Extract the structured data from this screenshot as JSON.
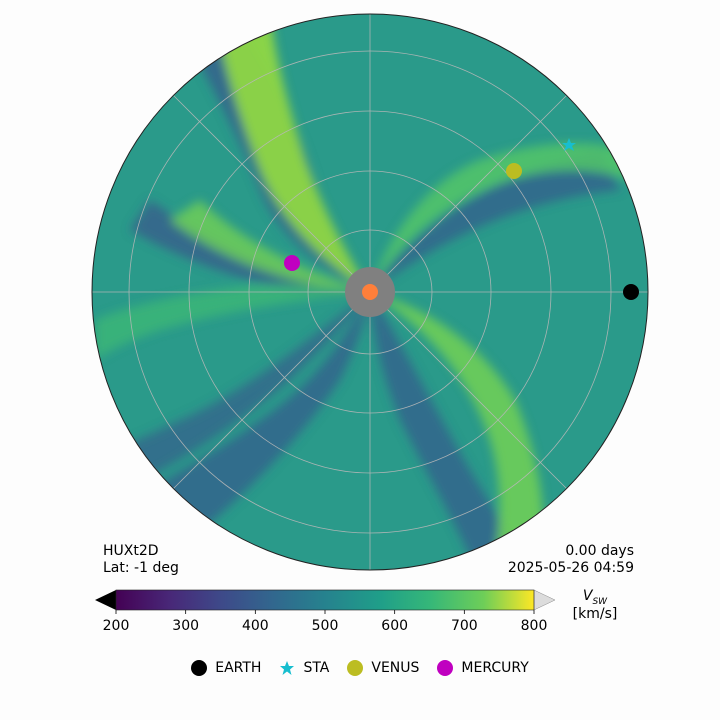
{
  "model_name": "HUXt2D",
  "latitude_text": "Lat:  -1 deg",
  "elapsed_text": "0.00 days",
  "timestamp_text": "2025-05-26 04:59",
  "colorbar": {
    "label_main": "V",
    "label_sub": "SW",
    "unit": "[km/s]",
    "ticks": [
      "200",
      "300",
      "400",
      "500",
      "600",
      "700",
      "800"
    ],
    "range": [
      200,
      800
    ],
    "colormap": "viridis"
  },
  "colors": {
    "earth": "#000000",
    "sta": "#17becf",
    "venus": "#bcbd22",
    "mercury": "#c000c0",
    "sun": "#ff7f3a",
    "inner_boundary": "#808080",
    "background_wind": "#2a9a8a"
  },
  "legend": [
    {
      "label": "EARTH",
      "marker": "circle",
      "color_key": "earth"
    },
    {
      "label": "STA",
      "marker": "star",
      "color_key": "sta"
    },
    {
      "label": "VENUS",
      "marker": "circle",
      "color_key": "venus"
    },
    {
      "label": "MERCURY",
      "marker": "circle",
      "color_key": "mercury"
    }
  ],
  "chart_data": {
    "type": "heatmap",
    "projection": "polar",
    "quantity": "solar wind speed",
    "value_range": [
      200,
      800
    ],
    "units": "km/s",
    "grid": true,
    "legend_position": "bottom",
    "streams": [
      {
        "speed": 700,
        "description": "fast stream spiralling from northwest"
      },
      {
        "speed": 650,
        "description": "fast stream spiralling toward southeast"
      },
      {
        "speed": 640,
        "description": "fast stream spiralling from northeast"
      },
      {
        "speed": 380,
        "description": "slow wind band between streams"
      }
    ],
    "bodies": [
      {
        "name": "EARTH",
        "longitude_deg": 0,
        "radius_frac": 0.95
      },
      {
        "name": "STA",
        "longitude_deg": 38,
        "radius_frac": 0.93
      },
      {
        "name": "VENUS",
        "longitude_deg": 39,
        "radius_frac": 0.68
      },
      {
        "name": "MERCURY",
        "longitude_deg": 153,
        "radius_frac": 0.28
      }
    ]
  }
}
